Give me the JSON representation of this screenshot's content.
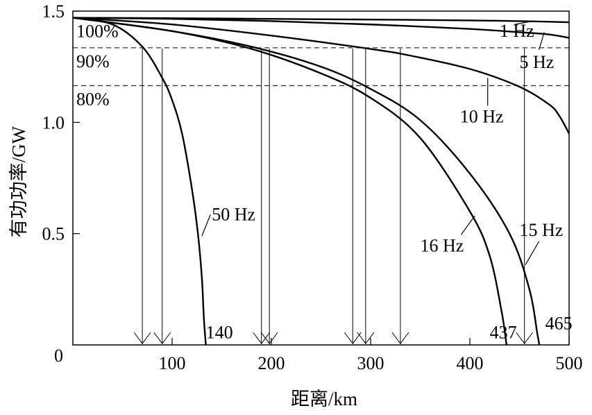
{
  "chart_data": {
    "type": "line",
    "xlabel": "距离/km",
    "ylabel": "有功功率/GW",
    "xlim": [
      0,
      500
    ],
    "ylim": [
      0,
      1.5
    ],
    "x_ticks": [
      {
        "value": 100,
        "label": "100"
      },
      {
        "value": 200,
        "label": "200"
      },
      {
        "value": 300,
        "label": "300"
      },
      {
        "value": 400,
        "label": "400"
      },
      {
        "value": 500,
        "label": "500"
      }
    ],
    "y_ticks": [
      {
        "value": 0,
        "label": "0"
      },
      {
        "value": 0.5,
        "label": "0.5"
      },
      {
        "value": 1.0,
        "label": "1.0"
      },
      {
        "value": 1.5,
        "label": "1.5"
      }
    ],
    "reference_lines": [
      {
        "label": "100%",
        "value": 1.47,
        "style": "none"
      },
      {
        "label": "90%",
        "value": 1.335,
        "style": "dashed"
      },
      {
        "label": "80%",
        "value": 1.165,
        "style": "dashed"
      }
    ],
    "series": [
      {
        "name": "1 Hz",
        "x": [
          0,
          100,
          200,
          300,
          400,
          450,
          500
        ],
        "y": [
          1.47,
          1.468,
          1.465,
          1.462,
          1.458,
          1.455,
          1.45
        ],
        "label_pos": [
          430,
          1.385
        ],
        "leader_to": [
          445,
          1.44
        ]
      },
      {
        "name": "5 Hz",
        "x": [
          0,
          100,
          200,
          300,
          400,
          450,
          480,
          500
        ],
        "y": [
          1.47,
          1.465,
          1.455,
          1.44,
          1.42,
          1.405,
          1.395,
          1.38
        ],
        "label_pos": [
          450,
          1.245
        ],
        "leader_to": [
          475,
          1.405
        ]
      },
      {
        "name": "10 Hz",
        "x": [
          0,
          100,
          200,
          300,
          340,
          400,
          450,
          480,
          490,
          500
        ],
        "y": [
          1.47,
          1.44,
          1.39,
          1.33,
          1.3,
          1.24,
          1.16,
          1.08,
          1.03,
          0.95
        ],
        "label_pos": [
          390,
          1.0
        ],
        "leader_to": [
          418,
          1.2
        ]
      },
      {
        "name": "15 Hz",
        "x": [
          0,
          100,
          180,
          250,
          300,
          350,
          400,
          440,
          460,
          468,
          470
        ],
        "y": [
          1.47,
          1.41,
          1.34,
          1.25,
          1.15,
          1.01,
          0.77,
          0.5,
          0.25,
          0.05,
          0.0
        ],
        "label_pos": [
          450,
          0.49
        ],
        "leader_to": [
          456,
          0.36
        ]
      },
      {
        "name": "16 Hz",
        "x": [
          0,
          100,
          180,
          250,
          300,
          350,
          400,
          420,
          432,
          437
        ],
        "y": [
          1.47,
          1.41,
          1.33,
          1.22,
          1.11,
          0.93,
          0.6,
          0.4,
          0.15,
          0.0
        ],
        "label_pos": [
          350,
          0.42
        ],
        "leader_to": [
          405,
          0.58
        ]
      },
      {
        "name": "50 Hz",
        "x": [
          0,
          40,
          70,
          90,
          100,
          110,
          120,
          126,
          130,
          132,
          134
        ],
        "y": [
          1.47,
          1.44,
          1.34,
          1.2,
          1.1,
          0.95,
          0.7,
          0.5,
          0.3,
          0.12,
          0.0
        ],
        "label_pos": [
          140,
          0.56
        ],
        "leader_to": [
          130,
          0.49
        ]
      }
    ],
    "intersection_drops": [
      70,
      90,
      190,
      198,
      282,
      295,
      330,
      455
    ],
    "end_labels": [
      {
        "text": "140",
        "x": 134,
        "y": 0.03
      },
      {
        "text": "437",
        "x": 420,
        "y": 0.03
      },
      {
        "text": "465",
        "x": 476,
        "y": 0.07
      }
    ],
    "origin_label": "0",
    "grid": false,
    "legend": "none"
  }
}
